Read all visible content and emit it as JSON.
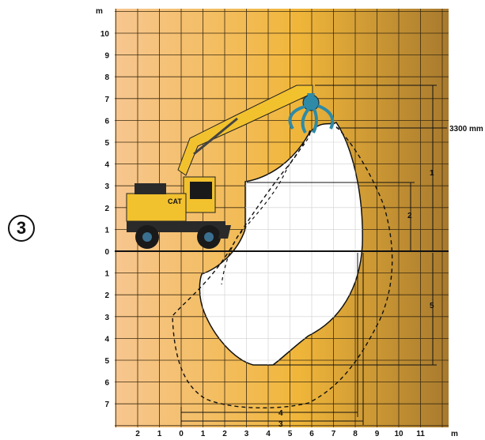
{
  "figure_number": "3",
  "y_axis_unit": "m",
  "x_axis_unit": "m",
  "y_ticks_above": [
    "10",
    "9",
    "8",
    "7",
    "6",
    "5",
    "4",
    "3",
    "2",
    "1"
  ],
  "y_zero": "0",
  "y_ticks_below": [
    "1",
    "2",
    "3",
    "4",
    "5",
    "6",
    "7"
  ],
  "x_ticks": [
    "2",
    "1",
    "0",
    "1",
    "2",
    "3",
    "4",
    "5",
    "6",
    "7",
    "8",
    "9",
    "10",
    "11"
  ],
  "annotation": "3300 mm",
  "dimension_labels": {
    "d1": "1",
    "d2": "2",
    "d3": "3",
    "d4": "4",
    "d5": "5"
  },
  "machine": {
    "brand": "CAT",
    "body_color": "#f2c12e",
    "attachment": "orange-peel grapple",
    "attachment_color": "#2e8aa6"
  },
  "colors": {
    "gradient_left": "#f7c690",
    "gradient_mid": "#f0b63a",
    "gradient_right": "#a87a2e",
    "grid_line": "#3a2a10",
    "reach_area": "#ffffff"
  }
}
